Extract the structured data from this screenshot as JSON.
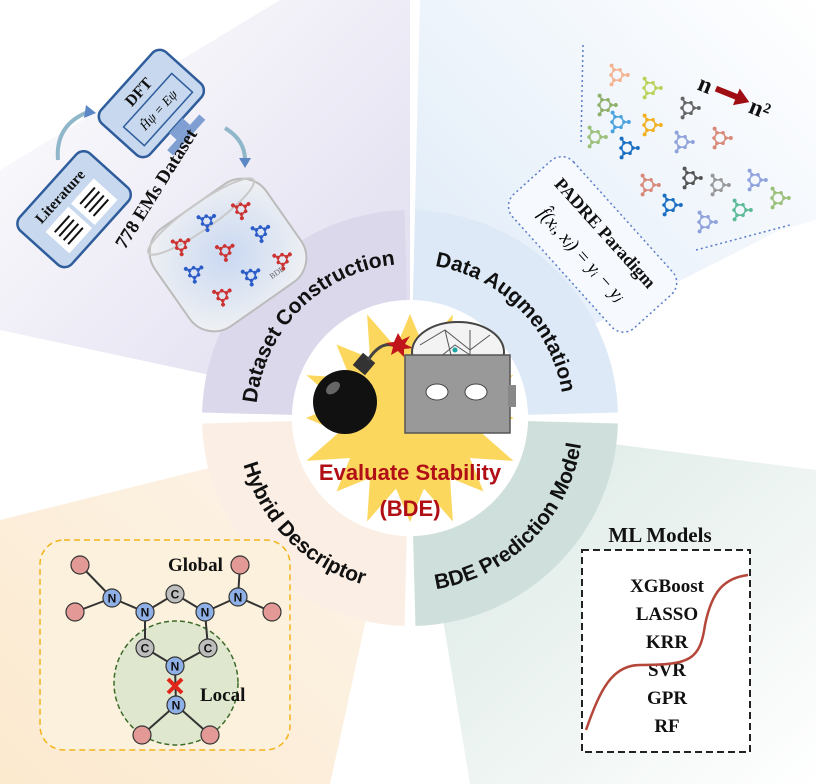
{
  "center": {
    "title": "Evaluate Stability",
    "subtitle": "(BDE)",
    "title_color": "#b10f16",
    "burst_color": "#fcd34d"
  },
  "ring": {
    "segments": [
      {
        "label": "Dataset Construction",
        "color": "#dcd8ec"
      },
      {
        "label": "Data Augmentation",
        "color": "#dde9f6"
      },
      {
        "label": "Hybrid Descriptor",
        "color": "#fbefe5"
      },
      {
        "label": "BDE Prediction Model",
        "color": "#cfe0dc"
      }
    ]
  },
  "dataset": {
    "literature": "Literature",
    "dft": "DFT",
    "dft_equation": "Ĥψ = Eψ",
    "dataset_label": "778 EMs Dataset",
    "molecule_tag": "BDE"
  },
  "augmentation": {
    "paradigm": "PADRE Paradigm",
    "formula": "f̂(xᵢ, xⱼ) = yᵢ − yⱼ",
    "scale_from": "n",
    "scale_to": "n²",
    "accent": "#a00d12"
  },
  "descriptor": {
    "global_label": "Global",
    "local_label": "Local",
    "global_color": "#f3b31a",
    "local_color": "#3d6b2a",
    "atom_n": "N",
    "atom_c": "C"
  },
  "ml": {
    "title": "ML Models",
    "models": [
      "XGBoost",
      "LASSO",
      "KRR",
      "SVR",
      "GPR",
      "RF"
    ],
    "curve_color": "#b5463a"
  }
}
